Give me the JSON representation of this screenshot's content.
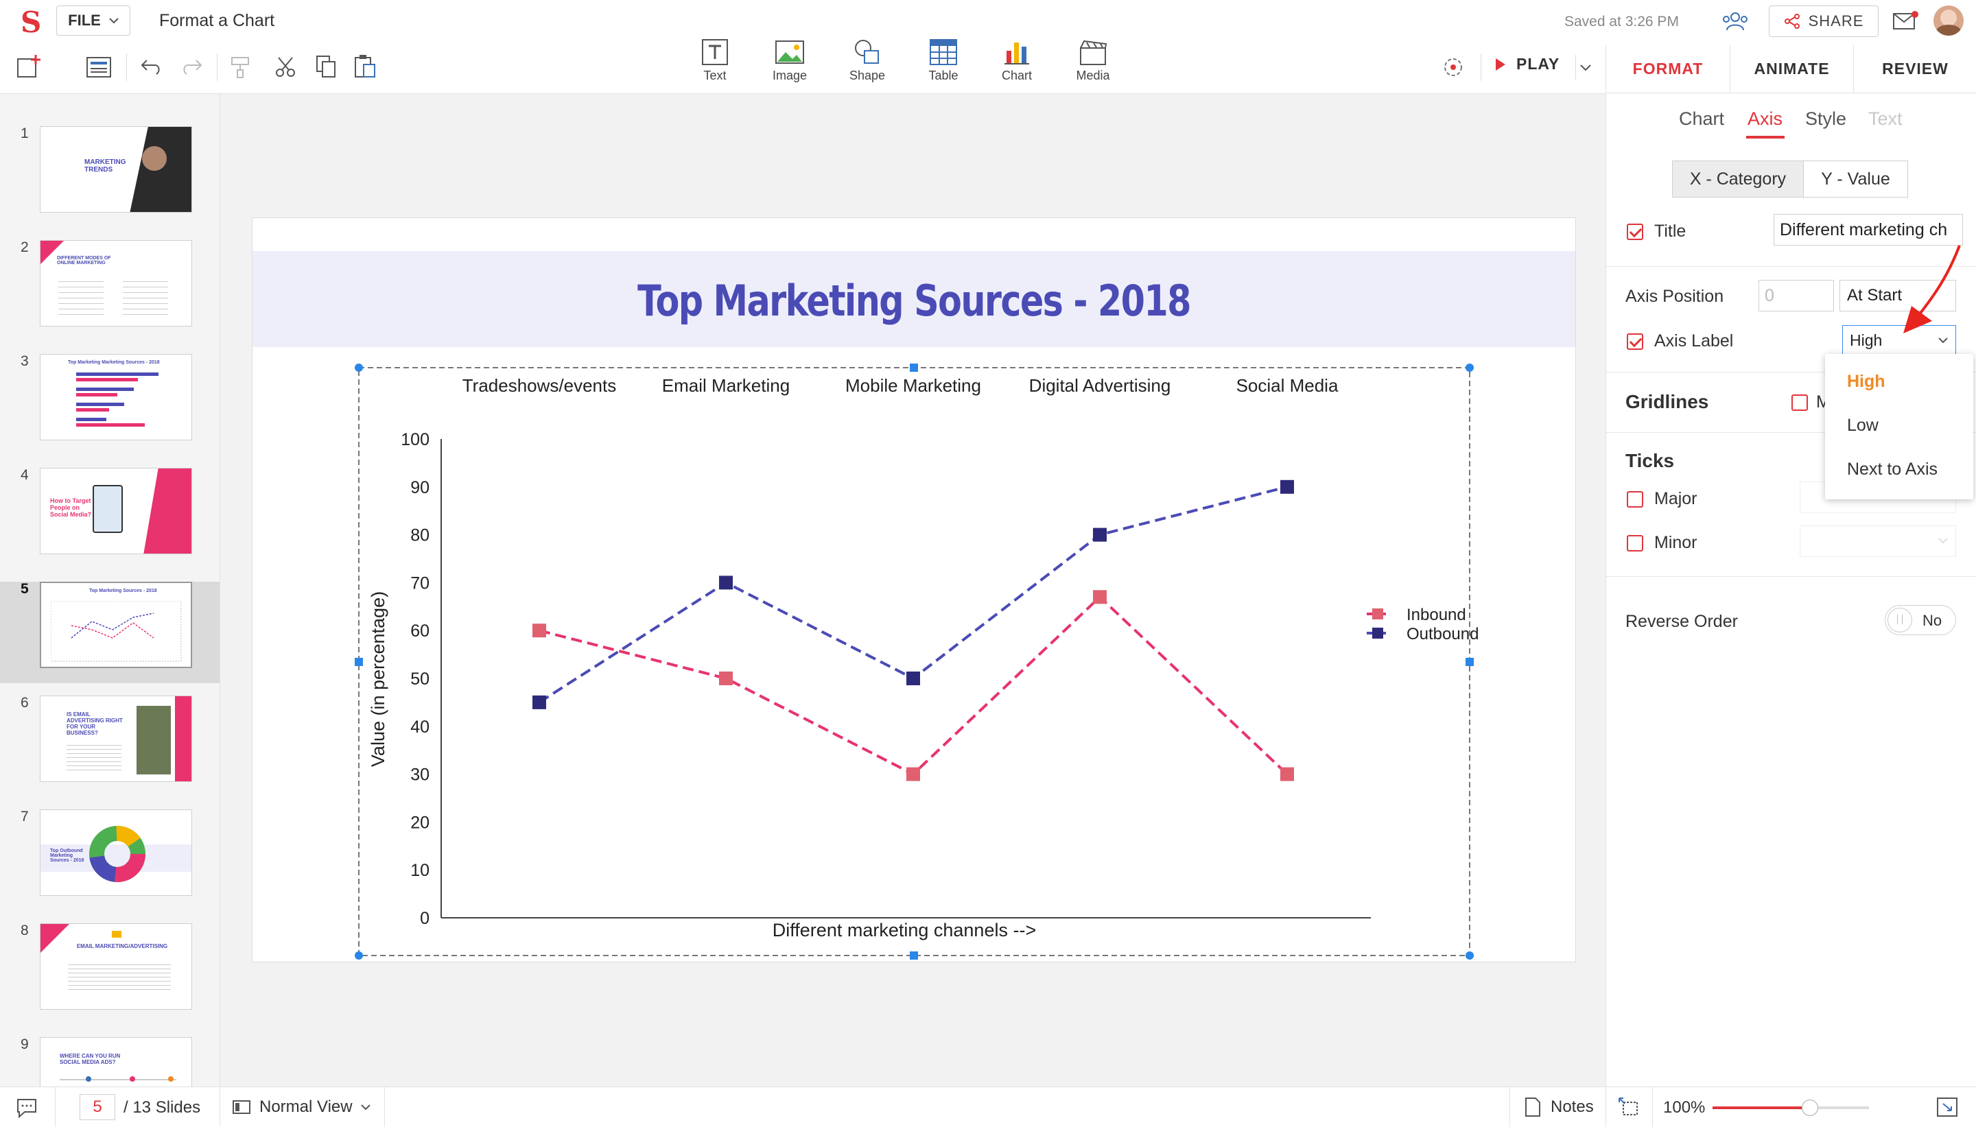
{
  "app": {
    "title": "Format a Chart",
    "file_menu": "FILE",
    "saved_status": "Saved at 3:26 PM",
    "share": "SHARE",
    "play": "PLAY"
  },
  "insert_tools": [
    {
      "label": "Text",
      "icon": "text-box-icon"
    },
    {
      "label": "Image",
      "icon": "image-icon"
    },
    {
      "label": "Shape",
      "icon": "shape-icon"
    },
    {
      "label": "Table",
      "icon": "table-icon"
    },
    {
      "label": "Chart",
      "icon": "chart-icon"
    },
    {
      "label": "Media",
      "icon": "media-icon"
    }
  ],
  "panel": {
    "tabs": [
      "FORMAT",
      "ANIMATE",
      "REVIEW"
    ],
    "active_tab": "FORMAT",
    "subtabs": [
      "Chart",
      "Axis",
      "Style",
      "Text"
    ],
    "active_subtab": "Axis",
    "axis_segments": [
      "X - Category",
      "Y - Value"
    ],
    "active_segment": "X - Category",
    "title_label": "Title",
    "title_value": "Different marketing ch",
    "axis_position_label": "Axis Position",
    "axis_position_value": "0",
    "axis_position_select": "At Start",
    "axis_label_label": "Axis Label",
    "axis_label_value": "High",
    "gridlines_label": "Gridlines",
    "gridlines_peek": "M",
    "ticks_label": "Ticks",
    "major_label": "Major",
    "minor_label": "Minor",
    "reverse_order_label": "Reverse Order",
    "reverse_order_value": "No",
    "dropdown_options": [
      "High",
      "Low",
      "Next to Axis"
    ],
    "dropdown_selected": "High"
  },
  "slides": [
    {
      "num": "1",
      "title": "MARKETING TRENDS"
    },
    {
      "num": "2",
      "title": "DIFFERENT MODES OF ONLINE MARKETING"
    },
    {
      "num": "3",
      "title": "Top Marketing Marketing Sources - 2018"
    },
    {
      "num": "4",
      "title": "How to Target People on Social Media?"
    },
    {
      "num": "5",
      "title": "Top Marketing Sources - 2018"
    },
    {
      "num": "6",
      "title": "IS EMAIL ADVERTISING RIGHT FOR YOUR BUSINESS?"
    },
    {
      "num": "7",
      "title": "Top Outbound Marketing Sources - 2018"
    },
    {
      "num": "8",
      "title": "EMAIL MARKETING/ADVERTISING"
    },
    {
      "num": "9",
      "title": "WHERE CAN YOU RUN SOCIAL MEDIA ADS?"
    }
  ],
  "current_slide": "5",
  "bottom": {
    "slide_input": "5",
    "slide_total": "/ 13 Slides",
    "view_mode": "Normal View",
    "notes": "Notes",
    "zoom": "100%"
  },
  "slide_title": "Top Marketing Sources - 2018",
  "chart_data": {
    "type": "line",
    "categories": [
      "Tradeshows/events",
      "Email Marketing",
      "Mobile Marketing",
      "Digital Advertising",
      "Social Media"
    ],
    "series": [
      {
        "name": "Inbound",
        "values": [
          60,
          50,
          30,
          67,
          30
        ],
        "color": "#e8336e"
      },
      {
        "name": "Outbound",
        "values": [
          45,
          70,
          50,
          80,
          90
        ],
        "color": "#4b4bb5"
      }
    ],
    "xlabel": "Different marketing channels -->",
    "ylabel": "Value (in percentage)",
    "ylim": [
      0,
      100
    ],
    "yticks": [
      0,
      10,
      20,
      30,
      40,
      50,
      60,
      70,
      80,
      90,
      100
    ],
    "x_axis_label_position": "top",
    "legend": "right",
    "grid": false
  },
  "colors": {
    "accent": "#e0353b",
    "dropdown_active": "#f08a24",
    "title_blue": "#4b4bb5"
  }
}
